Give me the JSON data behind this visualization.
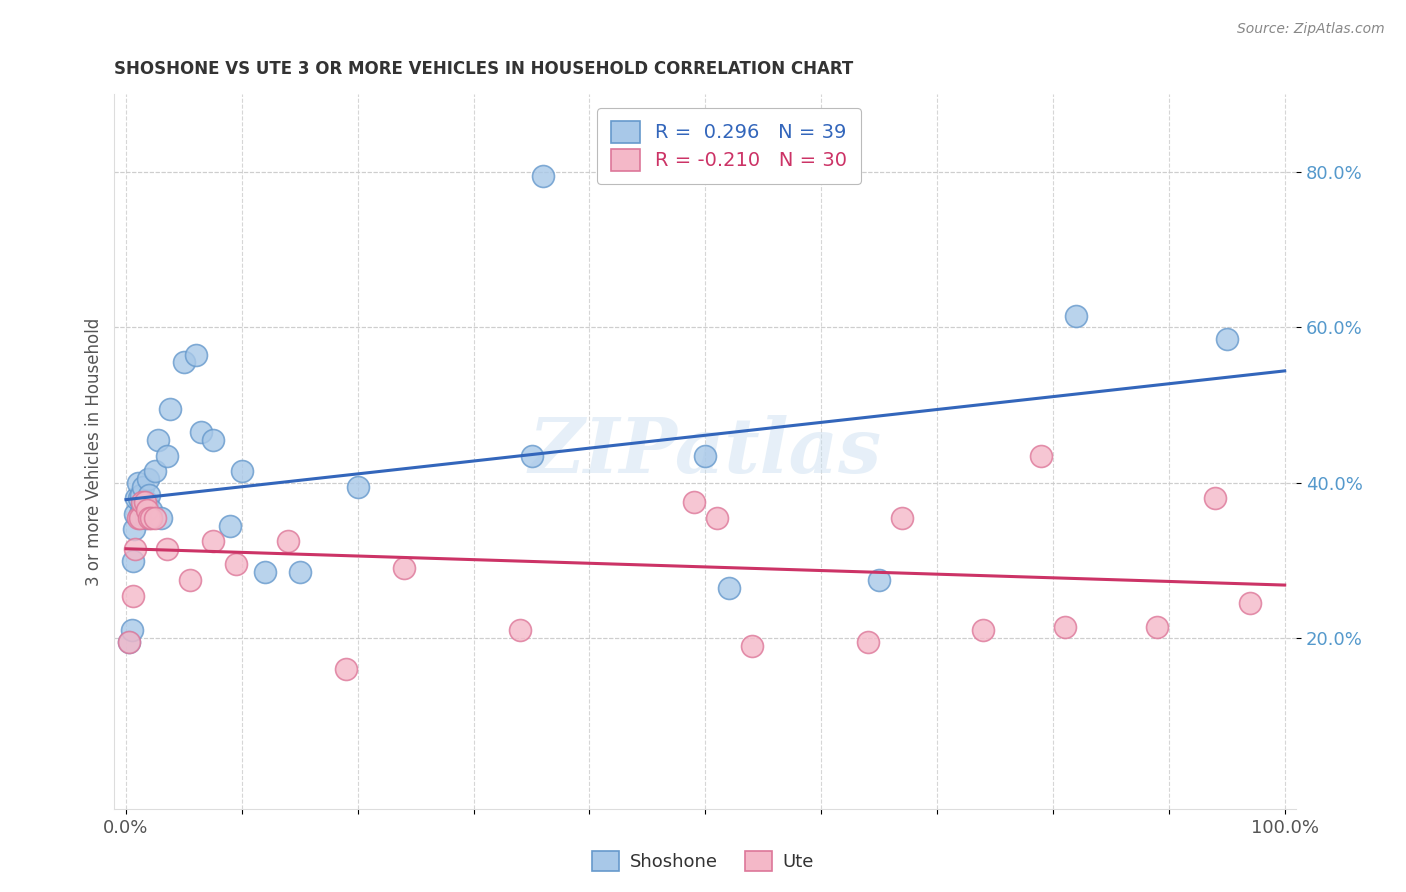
{
  "title": "SHOSHONE VS UTE 3 OR MORE VEHICLES IN HOUSEHOLD CORRELATION CHART",
  "source": "Source: ZipAtlas.com",
  "ylabel": "3 or more Vehicles in Household",
  "ytick_labels": [
    "20.0%",
    "40.0%",
    "60.0%",
    "80.0%"
  ],
  "ytick_values": [
    0.2,
    0.4,
    0.6,
    0.8
  ],
  "xlim": [
    -0.01,
    1.01
  ],
  "ylim": [
    -0.02,
    0.9
  ],
  "watermark": "ZIPatlas",
  "shoshone_x": [
    0.003,
    0.005,
    0.006,
    0.007,
    0.008,
    0.009,
    0.01,
    0.011,
    0.012,
    0.013,
    0.014,
    0.015,
    0.016,
    0.017,
    0.018,
    0.019,
    0.02,
    0.022,
    0.025,
    0.028,
    0.03,
    0.035,
    0.038,
    0.05,
    0.06,
    0.065,
    0.075,
    0.09,
    0.1,
    0.12,
    0.15,
    0.2,
    0.35,
    0.5,
    0.52,
    0.65,
    0.82,
    0.95,
    0.36
  ],
  "shoshone_y": [
    0.195,
    0.21,
    0.3,
    0.34,
    0.36,
    0.38,
    0.4,
    0.38,
    0.36,
    0.385,
    0.37,
    0.395,
    0.375,
    0.355,
    0.375,
    0.405,
    0.385,
    0.365,
    0.415,
    0.455,
    0.355,
    0.435,
    0.495,
    0.555,
    0.565,
    0.465,
    0.455,
    0.345,
    0.415,
    0.285,
    0.285,
    0.395,
    0.435,
    0.435,
    0.265,
    0.275,
    0.615,
    0.585,
    0.795
  ],
  "ute_x": [
    0.003,
    0.006,
    0.008,
    0.01,
    0.012,
    0.014,
    0.016,
    0.018,
    0.02,
    0.022,
    0.025,
    0.035,
    0.055,
    0.075,
    0.095,
    0.14,
    0.19,
    0.24,
    0.34,
    0.49,
    0.51,
    0.54,
    0.64,
    0.67,
    0.74,
    0.79,
    0.81,
    0.89,
    0.94,
    0.97
  ],
  "ute_y": [
    0.195,
    0.255,
    0.315,
    0.355,
    0.355,
    0.375,
    0.375,
    0.365,
    0.355,
    0.355,
    0.355,
    0.315,
    0.275,
    0.325,
    0.295,
    0.325,
    0.16,
    0.29,
    0.21,
    0.375,
    0.355,
    0.19,
    0.195,
    0.355,
    0.21,
    0.435,
    0.215,
    0.215,
    0.38,
    0.245
  ],
  "shoshone_color": "#a8c8e8",
  "ute_color": "#f4b8c8",
  "shoshone_edge": "#6699cc",
  "ute_edge": "#dd7799",
  "line_blue": "#3366bb",
  "line_pink": "#cc3366",
  "legend_shoshone": "R =  0.296   N = 39",
  "legend_ute": "R = -0.210   N = 30",
  "shoshone_label": "Shoshone",
  "ute_label": "Ute",
  "grid_color": "#cccccc",
  "tick_color_y": "#5599cc",
  "tick_color_x": "#555555"
}
